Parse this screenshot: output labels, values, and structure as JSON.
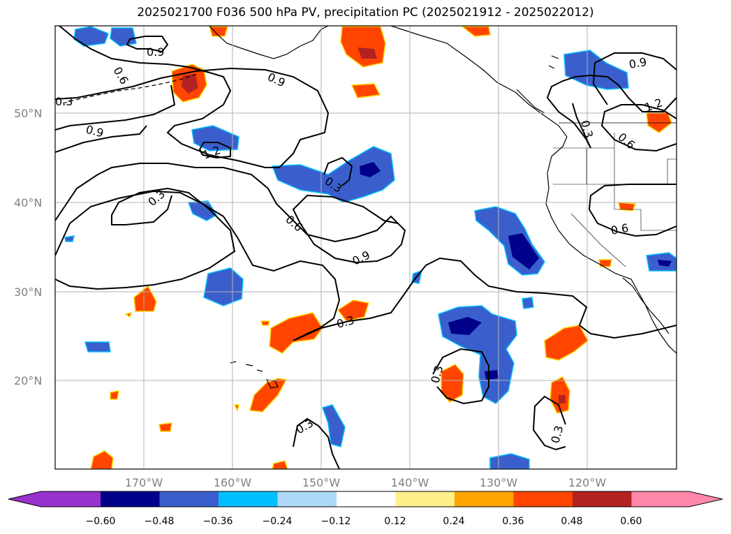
{
  "title": "2025021700 F036 500 hPa PV, precipitation PC (2025021912 - 2025022012)",
  "map": {
    "lat_labels": [
      "50°N",
      "40°N",
      "30°N",
      "20°N"
    ],
    "lon_labels": [
      "170°W",
      "160°W",
      "150°W",
      "140°W",
      "130°W",
      "120°W"
    ],
    "pv_contour_labels": [
      "0.3",
      "0.6",
      "0.9",
      "1.2"
    ]
  },
  "colorbar": {
    "ticks": [
      "−0.60",
      "−0.48",
      "−0.36",
      "−0.24",
      "−0.12",
      "0.12",
      "0.24",
      "0.36",
      "0.48",
      "0.60"
    ],
    "colors": [
      "#9932cc",
      "#00008b",
      "#3a5fcd",
      "#00bfff",
      "#add8f6",
      "#ffffff",
      "#fff08c",
      "#ffa500",
      "#ff4500",
      "#b22222",
      "#ff88aa"
    ]
  }
}
